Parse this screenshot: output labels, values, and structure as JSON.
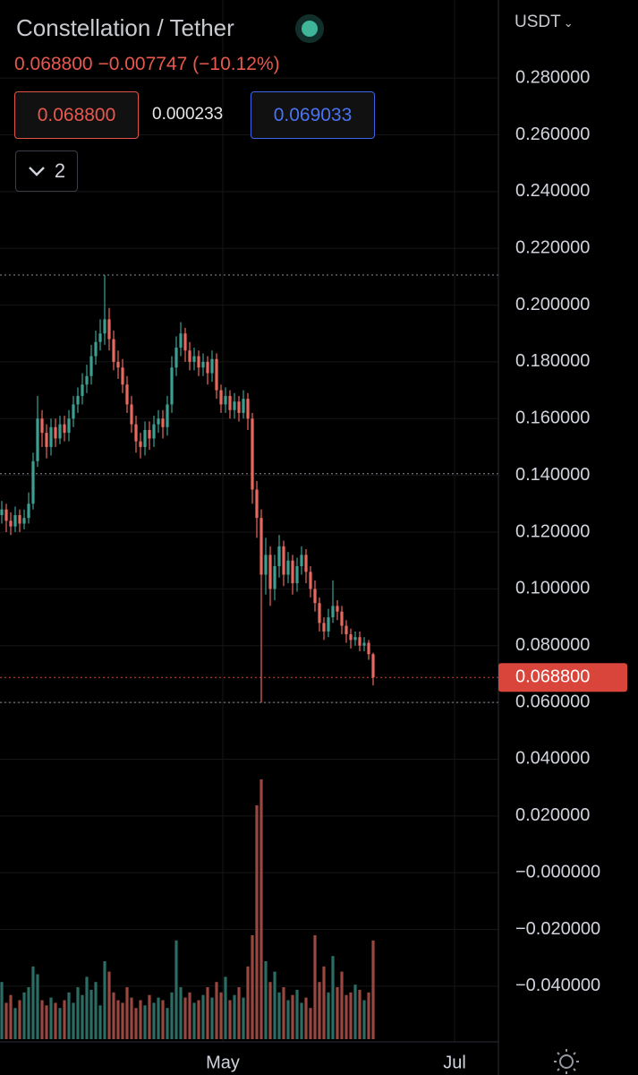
{
  "header": {
    "title": "Constellation / Tether",
    "last": "0.068800",
    "change": "−0.007747",
    "change_percent": "(−10.12%)",
    "sell": "0.068800",
    "spread": "0.000233",
    "buy": "0.069033",
    "indicator_count": "2",
    "currency": "USDT"
  },
  "chart_data": {
    "type": "candlestick",
    "up_color": "#3d9f92",
    "down_color": "#e8695f",
    "volume_up_color": "#2b6d64",
    "volume_down_color": "#9a4740",
    "x": [
      0,
      1,
      2,
      3,
      4,
      5,
      6,
      7,
      8,
      9,
      10,
      11,
      12,
      13,
      14,
      15,
      16,
      17,
      18,
      19,
      20,
      21,
      22,
      23,
      24,
      25,
      26,
      27,
      28,
      29,
      30,
      31,
      32,
      33,
      34,
      35,
      36,
      37,
      38,
      39,
      40,
      41,
      42,
      43,
      44,
      45,
      46,
      47,
      48,
      49,
      50,
      51,
      52,
      53,
      54,
      55,
      56,
      57,
      58,
      59,
      60,
      61,
      62,
      63,
      64,
      65,
      66,
      67,
      68,
      69,
      70,
      71,
      72,
      73,
      74,
      75,
      76,
      77,
      78,
      79,
      80,
      81,
      82,
      83
    ],
    "open": [
      0.126,
      0.128,
      0.124,
      0.122,
      0.126,
      0.123,
      0.125,
      0.13,
      0.145,
      0.16,
      0.155,
      0.15,
      0.157,
      0.153,
      0.158,
      0.155,
      0.16,
      0.165,
      0.168,
      0.172,
      0.175,
      0.182,
      0.187,
      0.19,
      0.195,
      0.188,
      0.18,
      0.178,
      0.172,
      0.165,
      0.158,
      0.152,
      0.15,
      0.156,
      0.153,
      0.158,
      0.16,
      0.157,
      0.165,
      0.178,
      0.185,
      0.19,
      0.184,
      0.18,
      0.182,
      0.178,
      0.18,
      0.176,
      0.181,
      0.17,
      0.165,
      0.168,
      0.163,
      0.166,
      0.162,
      0.167,
      0.16,
      0.135,
      0.125,
      0.105,
      0.112,
      0.1,
      0.108,
      0.115,
      0.105,
      0.11,
      0.102,
      0.108,
      0.112,
      0.106,
      0.1,
      0.095,
      0.088,
      0.085,
      0.09,
      0.094,
      0.092,
      0.087,
      0.084,
      0.082,
      0.083,
      0.08,
      0.081,
      0.077
    ],
    "high": [
      0.131,
      0.13,
      0.127,
      0.129,
      0.128,
      0.128,
      0.134,
      0.148,
      0.168,
      0.163,
      0.158,
      0.16,
      0.16,
      0.161,
      0.161,
      0.163,
      0.168,
      0.171,
      0.176,
      0.179,
      0.186,
      0.191,
      0.195,
      0.2106,
      0.199,
      0.191,
      0.184,
      0.181,
      0.175,
      0.168,
      0.161,
      0.155,
      0.159,
      0.159,
      0.161,
      0.163,
      0.163,
      0.168,
      0.182,
      0.189,
      0.194,
      0.192,
      0.187,
      0.185,
      0.184,
      0.183,
      0.182,
      0.184,
      0.183,
      0.172,
      0.171,
      0.17,
      0.169,
      0.168,
      0.17,
      0.169,
      0.162,
      0.138,
      0.128,
      0.118,
      0.115,
      0.112,
      0.119,
      0.117,
      0.113,
      0.112,
      0.111,
      0.115,
      0.114,
      0.108,
      0.103,
      0.097,
      0.09,
      0.093,
      0.103,
      0.096,
      0.094,
      0.089,
      0.086,
      0.085,
      0.085,
      0.083,
      0.082,
      0.0775
    ],
    "low": [
      0.123,
      0.12,
      0.119,
      0.12,
      0.12,
      0.121,
      0.123,
      0.128,
      0.143,
      0.15,
      0.146,
      0.147,
      0.15,
      0.151,
      0.152,
      0.152,
      0.157,
      0.162,
      0.165,
      0.169,
      0.172,
      0.179,
      0.184,
      0.186,
      0.184,
      0.177,
      0.174,
      0.169,
      0.162,
      0.155,
      0.148,
      0.146,
      0.147,
      0.149,
      0.15,
      0.155,
      0.153,
      0.154,
      0.162,
      0.175,
      0.182,
      0.18,
      0.177,
      0.177,
      0.175,
      0.175,
      0.172,
      0.173,
      0.167,
      0.162,
      0.162,
      0.16,
      0.16,
      0.159,
      0.16,
      0.156,
      0.13,
      0.118,
      0.06,
      0.098,
      0.094,
      0.096,
      0.104,
      0.101,
      0.102,
      0.098,
      0.099,
      0.105,
      0.102,
      0.097,
      0.092,
      0.085,
      0.082,
      0.083,
      0.088,
      0.089,
      0.084,
      0.081,
      0.079,
      0.08,
      0.078,
      0.078,
      0.075,
      0.066
    ],
    "close": [
      0.128,
      0.124,
      0.122,
      0.126,
      0.123,
      0.125,
      0.13,
      0.145,
      0.16,
      0.155,
      0.15,
      0.157,
      0.153,
      0.158,
      0.155,
      0.16,
      0.165,
      0.168,
      0.172,
      0.175,
      0.182,
      0.187,
      0.19,
      0.195,
      0.188,
      0.18,
      0.178,
      0.172,
      0.165,
      0.158,
      0.152,
      0.15,
      0.156,
      0.153,
      0.158,
      0.16,
      0.157,
      0.165,
      0.178,
      0.185,
      0.19,
      0.184,
      0.18,
      0.182,
      0.178,
      0.18,
      0.176,
      0.181,
      0.17,
      0.165,
      0.168,
      0.163,
      0.166,
      0.162,
      0.167,
      0.16,
      0.135,
      0.125,
      0.105,
      0.112,
      0.1,
      0.108,
      0.115,
      0.105,
      0.11,
      0.102,
      0.108,
      0.112,
      0.106,
      0.1,
      0.095,
      0.088,
      0.085,
      0.09,
      0.094,
      0.092,
      0.087,
      0.084,
      0.082,
      0.083,
      0.08,
      0.081,
      0.077,
      0.0688
    ],
    "volume": [
      22,
      14,
      17,
      12,
      15,
      18,
      20,
      28,
      25,
      15,
      13,
      16,
      14,
      12,
      15,
      18,
      14,
      20,
      17,
      24,
      19,
      22,
      13,
      30,
      26,
      18,
      15,
      14,
      20,
      16,
      12,
      15,
      13,
      17,
      14,
      16,
      15,
      12,
      18,
      38,
      20,
      16,
      18,
      14,
      15,
      17,
      20,
      16,
      22,
      18,
      24,
      15,
      17,
      20,
      16,
      28,
      40,
      90,
      100,
      30,
      22,
      26,
      18,
      20,
      15,
      17,
      19,
      14,
      16,
      12,
      40,
      22,
      28,
      18,
      32,
      20,
      26,
      17,
      18,
      21,
      19,
      15,
      18,
      38
    ],
    "xlim": [
      -0.4,
      111
    ],
    "xticks": [
      {
        "value": 49.4,
        "label": "May"
      },
      {
        "value": 101.2,
        "label": "Jul"
      }
    ],
    "ylim": [
      -0.0596,
      0.3075
    ],
    "yticks": [
      {
        "value": 0.28,
        "label": "0.280000"
      },
      {
        "value": 0.26,
        "label": "0.260000"
      },
      {
        "value": 0.24,
        "label": "0.240000"
      },
      {
        "value": 0.22,
        "label": "0.220000"
      },
      {
        "value": 0.2,
        "label": "0.200000"
      },
      {
        "value": 0.18,
        "label": "0.180000"
      },
      {
        "value": 0.16,
        "label": "0.160000"
      },
      {
        "value": 0.14,
        "label": "0.140000"
      },
      {
        "value": 0.12,
        "label": "0.120000"
      },
      {
        "value": 0.1,
        "label": "0.100000"
      },
      {
        "value": 0.08,
        "label": "0.080000"
      },
      {
        "value": 0.06,
        "label": "0.060000"
      },
      {
        "value": 0.04,
        "label": "0.040000"
      },
      {
        "value": 0.02,
        "label": "0.020000"
      },
      {
        "value": 0,
        "label": "−0.000000"
      },
      {
        "value": -0.02,
        "label": "−0.020000"
      },
      {
        "value": -0.04,
        "label": "−0.040000"
      }
    ],
    "grid": true,
    "price_lines": [
      0.2106,
      0.1406,
      0.06
    ],
    "last_price": {
      "value": 0.0688,
      "label": "0.068800"
    },
    "last_price_color": "#d9453b"
  }
}
